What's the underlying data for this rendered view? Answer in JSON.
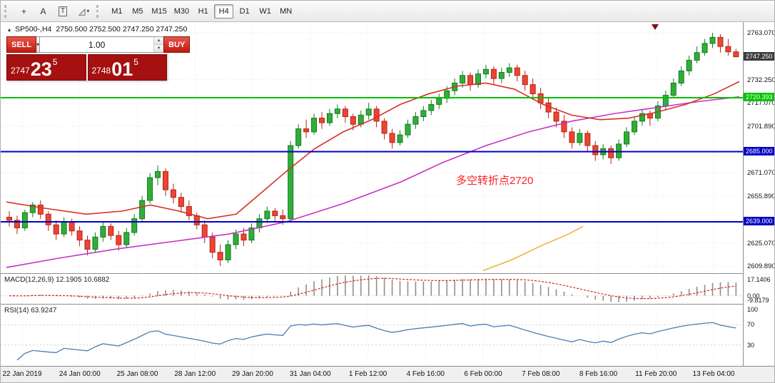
{
  "toolbar": {
    "tools": [
      {
        "name": "crosshair",
        "glyph": "+",
        "framed": false,
        "dropdown": false
      },
      {
        "name": "text",
        "glyph": "A",
        "framed": false,
        "dropdown": false
      },
      {
        "name": "text-frame",
        "glyph": "T",
        "framed": true,
        "dropdown": false
      },
      {
        "name": "shapes",
        "glyph": "◿",
        "framed": false,
        "dropdown": true
      }
    ],
    "timeframes": [
      {
        "label": "M1",
        "active": false
      },
      {
        "label": "M5",
        "active": false
      },
      {
        "label": "M15",
        "active": false
      },
      {
        "label": "M30",
        "active": false
      },
      {
        "label": "H1",
        "active": false
      },
      {
        "label": "H4",
        "active": true
      },
      {
        "label": "D1",
        "active": false
      },
      {
        "label": "W1",
        "active": false
      },
      {
        "label": "MN",
        "active": false
      }
    ]
  },
  "header": {
    "collapse_icon": "▴",
    "symbol_period": "SP500-,H4",
    "ohlc": "2750.500 2752.500 2747.250 2747.250"
  },
  "trade_panel": {
    "sell_label": "SELL",
    "buy_label": "BUY",
    "volume": "1.00",
    "sell_quote": {
      "prefix": "2747",
      "big": "23",
      "sup": "5"
    },
    "buy_quote": {
      "prefix": "2748",
      "big": "01",
      "sup": "5"
    }
  },
  "annotation": {
    "text": "多空转折点2720",
    "color": "#ff1f1f"
  },
  "price_axis": {
    "ticks": [
      {
        "label": "2763.070",
        "price": 2763.07
      },
      {
        "label": "2732.250",
        "price": 2732.25
      },
      {
        "label": "2717.070",
        "price": 2717.07
      },
      {
        "label": "2701.890",
        "price": 2701.89
      },
      {
        "label": "2671.070",
        "price": 2671.07
      },
      {
        "label": "2655.890",
        "price": 2655.89
      },
      {
        "label": "2625.070",
        "price": 2625.07
      },
      {
        "label": "2609.890",
        "price": 2609.89
      }
    ],
    "current": {
      "label": "2747.250",
      "price": 2747.25
    },
    "levels": [
      {
        "label": "2720.393",
        "price": 2720.393,
        "style": "green"
      },
      {
        "label": "2685.000",
        "price": 2685.0,
        "style": "blue"
      },
      {
        "label": "2639.000",
        "price": 2639.0,
        "style": "blue"
      }
    ]
  },
  "indicators": {
    "macd": {
      "label": "MACD(12,26,9) 12.1905 10.6882",
      "axis_labels": [
        "17.1406",
        "0.00",
        "-9.8179"
      ]
    },
    "rsi": {
      "label": "RSI(14) 63.9247",
      "axis_labels": [
        {
          "label": "100",
          "value": 100
        },
        {
          "label": "70",
          "value": 70
        },
        {
          "label": "30",
          "value": 30
        }
      ]
    }
  },
  "time_axis": {
    "labels": [
      "22 Jan 2019",
      "24 Jan 00:00",
      "25 Jan 08:00",
      "28 Jan 12:00",
      "29 Jan 20:00",
      "31 Jan 04:00",
      "1 Feb 12:00",
      "4 Feb 16:00",
      "6 Feb 00:00",
      "7 Feb 08:00",
      "8 Feb 16:00",
      "11 Feb 20:00",
      "13 Feb 04:00"
    ]
  },
  "colors": {
    "up_fill": "#2fae39",
    "up_stroke": "#157a1e",
    "down_fill": "#ee4433",
    "down_stroke": "#b32416",
    "ma_red": "#d93025",
    "ma_magenta": "#c633c6",
    "ma_yellow": "#e8b93a",
    "level_green": "#00c400",
    "level_blue": "#0101c4",
    "macd_bar": "#8f8f8f",
    "macd_signal": "#d32222",
    "rsi_line": "#4a7fb5",
    "grid": "#e3e3e3"
  },
  "chart_data": {
    "type": "candlestick",
    "symbol": "SP500-",
    "period": "H4",
    "title": "SP500-,H4",
    "price_range": [
      2605.3,
      2770
    ],
    "horizontal_levels": [
      2720.393,
      2685.0,
      2639.0
    ],
    "current_price": 2747.25,
    "candles_ohlc": [
      [
        2642,
        2646,
        2636,
        2640
      ],
      [
        2640,
        2643,
        2631,
        2635
      ],
      [
        2635,
        2647,
        2633,
        2645
      ],
      [
        2645,
        2652,
        2642,
        2650
      ],
      [
        2650,
        2653,
        2641,
        2644
      ],
      [
        2644,
        2646,
        2633,
        2637
      ],
      [
        2637,
        2640,
        2627,
        2631
      ],
      [
        2631,
        2642,
        2629,
        2639
      ],
      [
        2639,
        2641,
        2630,
        2633
      ],
      [
        2633,
        2636,
        2623,
        2627
      ],
      [
        2627,
        2630,
        2617,
        2621
      ],
      [
        2621,
        2632,
        2619,
        2629
      ],
      [
        2629,
        2639,
        2626,
        2636
      ],
      [
        2636,
        2638,
        2627,
        2630
      ],
      [
        2630,
        2633,
        2620,
        2624
      ],
      [
        2624,
        2635,
        2622,
        2632
      ],
      [
        2632,
        2644,
        2630,
        2641
      ],
      [
        2641,
        2656,
        2639,
        2653
      ],
      [
        2653,
        2671,
        2651,
        2668
      ],
      [
        2668,
        2676,
        2663,
        2672
      ],
      [
        2672,
        2674,
        2656,
        2660
      ],
      [
        2660,
        2664,
        2651,
        2655
      ],
      [
        2655,
        2658,
        2645,
        2649
      ],
      [
        2649,
        2653,
        2640,
        2643
      ],
      [
        2643,
        2645,
        2634,
        2637
      ],
      [
        2637,
        2640,
        2625,
        2629
      ],
      [
        2629,
        2632,
        2615,
        2619
      ],
      [
        2619,
        2624,
        2610,
        2614
      ],
      [
        2614,
        2627,
        2612,
        2624
      ],
      [
        2624,
        2634,
        2621,
        2631
      ],
      [
        2631,
        2635,
        2623,
        2627
      ],
      [
        2627,
        2638,
        2625,
        2635
      ],
      [
        2635,
        2644,
        2632,
        2641
      ],
      [
        2641,
        2649,
        2638,
        2646
      ],
      [
        2646,
        2648,
        2639,
        2643
      ],
      [
        2643,
        2647,
        2637,
        2641
      ],
      [
        2641,
        2692,
        2639,
        2689
      ],
      [
        2689,
        2703,
        2687,
        2700
      ],
      [
        2700,
        2706,
        2694,
        2698
      ],
      [
        2698,
        2710,
        2696,
        2707
      ],
      [
        2707,
        2711,
        2700,
        2704
      ],
      [
        2704,
        2713,
        2702,
        2710
      ],
      [
        2710,
        2716,
        2707,
        2713
      ],
      [
        2713,
        2715,
        2704,
        2708
      ],
      [
        2708,
        2710,
        2699,
        2703
      ],
      [
        2703,
        2712,
        2701,
        2709
      ],
      [
        2709,
        2717,
        2706,
        2713
      ],
      [
        2713,
        2715,
        2701,
        2705
      ],
      [
        2705,
        2707,
        2693,
        2697
      ],
      [
        2697,
        2700,
        2687,
        2691
      ],
      [
        2691,
        2699,
        2689,
        2696
      ],
      [
        2696,
        2706,
        2694,
        2703
      ],
      [
        2703,
        2711,
        2700,
        2708
      ],
      [
        2708,
        2715,
        2705,
        2712
      ],
      [
        2712,
        2719,
        2709,
        2716
      ],
      [
        2716,
        2723,
        2713,
        2720
      ],
      [
        2720,
        2728,
        2717,
        2725
      ],
      [
        2725,
        2733,
        2722,
        2730
      ],
      [
        2730,
        2738,
        2727,
        2735
      ],
      [
        2735,
        2737,
        2725,
        2729
      ],
      [
        2729,
        2739,
        2727,
        2736
      ],
      [
        2736,
        2742,
        2733,
        2739
      ],
      [
        2739,
        2741,
        2729,
        2733
      ],
      [
        2733,
        2740,
        2730,
        2737
      ],
      [
        2737,
        2743,
        2734,
        2740
      ],
      [
        2740,
        2742,
        2731,
        2735
      ],
      [
        2735,
        2738,
        2725,
        2729
      ],
      [
        2729,
        2733,
        2719,
        2723
      ],
      [
        2723,
        2727,
        2713,
        2717
      ],
      [
        2717,
        2720,
        2707,
        2711
      ],
      [
        2711,
        2714,
        2701,
        2705
      ],
      [
        2705,
        2709,
        2694,
        2698
      ],
      [
        2698,
        2701,
        2687,
        2691
      ],
      [
        2691,
        2700,
        2689,
        2697
      ],
      [
        2697,
        2699,
        2685,
        2689
      ],
      [
        2689,
        2692,
        2679,
        2683
      ],
      [
        2683,
        2690,
        2680,
        2687
      ],
      [
        2687,
        2689,
        2677,
        2681
      ],
      [
        2681,
        2693,
        2679,
        2690
      ],
      [
        2690,
        2701,
        2688,
        2698
      ],
      [
        2698,
        2708,
        2696,
        2705
      ],
      [
        2705,
        2713,
        2702,
        2710
      ],
      [
        2710,
        2712,
        2702,
        2707
      ],
      [
        2707,
        2718,
        2705,
        2715
      ],
      [
        2715,
        2725,
        2712,
        2722
      ],
      [
        2722,
        2733,
        2720,
        2730
      ],
      [
        2730,
        2741,
        2728,
        2738
      ],
      [
        2738,
        2748,
        2735,
        2745
      ],
      [
        2745,
        2754,
        2743,
        2750
      ],
      [
        2750,
        2759,
        2748,
        2756
      ],
      [
        2756,
        2763,
        2753,
        2760
      ],
      [
        2760,
        2762,
        2750,
        2754
      ],
      [
        2754,
        2759,
        2748,
        2750.5
      ],
      [
        2750.5,
        2752.5,
        2747.25,
        2747.25
      ]
    ],
    "ma_fast_red": [
      [
        8,
        2652
      ],
      [
        60,
        2648
      ],
      [
        120,
        2644
      ],
      [
        170,
        2646
      ],
      [
        210,
        2650
      ],
      [
        250,
        2646
      ],
      [
        290,
        2641
      ],
      [
        330,
        2644
      ],
      [
        365,
        2658
      ],
      [
        400,
        2672
      ],
      [
        440,
        2687
      ],
      [
        480,
        2698
      ],
      [
        520,
        2706
      ],
      [
        560,
        2716
      ],
      [
        600,
        2723
      ],
      [
        640,
        2728
      ],
      [
        680,
        2730
      ],
      [
        720,
        2726
      ],
      [
        760,
        2716
      ],
      [
        800,
        2709
      ],
      [
        840,
        2706
      ],
      [
        880,
        2707
      ],
      [
        920,
        2711
      ],
      [
        960,
        2716
      ],
      [
        1000,
        2723
      ],
      [
        1035,
        2731
      ]
    ],
    "ma_slow_magenta": [
      [
        8,
        2609
      ],
      [
        80,
        2615
      ],
      [
        160,
        2621
      ],
      [
        240,
        2626
      ],
      [
        320,
        2631
      ],
      [
        400,
        2639
      ],
      [
        480,
        2651
      ],
      [
        560,
        2665
      ],
      [
        620,
        2678
      ],
      [
        680,
        2689
      ],
      [
        740,
        2698
      ],
      [
        800,
        2705
      ],
      [
        860,
        2710
      ],
      [
        920,
        2714
      ],
      [
        980,
        2718
      ],
      [
        1035,
        2721
      ]
    ],
    "ma_long_yellow": [
      [
        676,
        2607
      ],
      [
        716,
        2614
      ],
      [
        756,
        2623
      ],
      [
        796,
        2631
      ],
      [
        816,
        2636
      ]
    ],
    "macd": {
      "params": [
        12,
        26,
        9
      ],
      "last_macd": 12.1905,
      "last_signal": 10.6882
    },
    "rsi": {
      "params": [
        14
      ],
      "last_value": 63.9247
    }
  }
}
